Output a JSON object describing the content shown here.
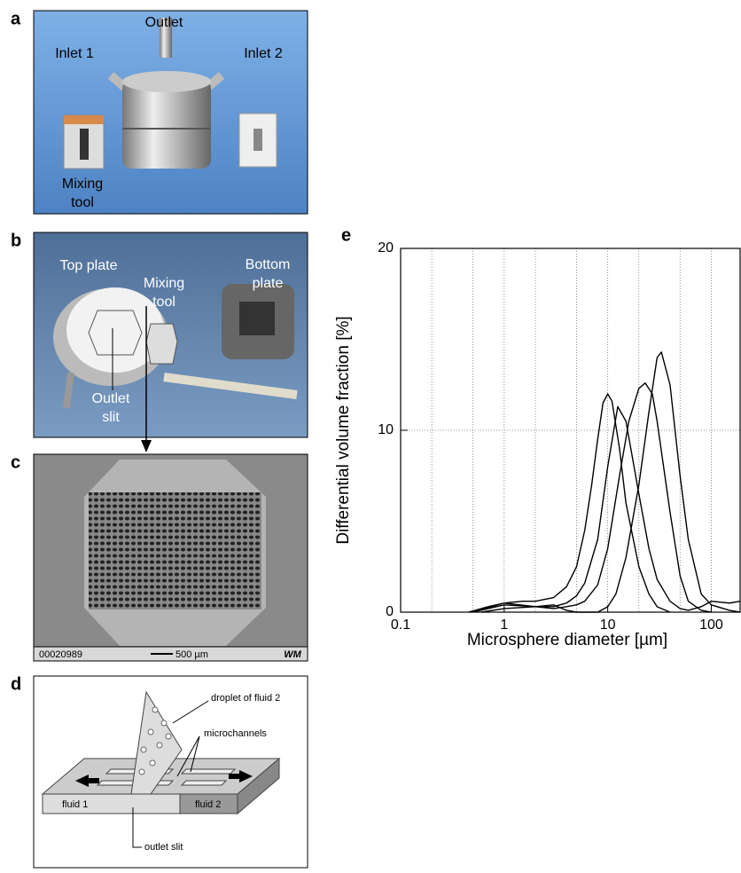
{
  "panels": {
    "a": {
      "label": "a",
      "outlet": "Outlet",
      "inlet1": "Inlet 1",
      "inlet2": "Inlet 2",
      "mixing_tool": [
        "Mixing",
        "tool"
      ]
    },
    "b": {
      "label": "b",
      "top_plate": "Top plate",
      "mixing_tool": [
        "Mixing",
        "tool"
      ],
      "bottom_plate": [
        "Bottom",
        "plate"
      ],
      "outlet_slit": [
        "Outlet",
        "slit"
      ]
    },
    "c": {
      "label": "c",
      "image_id": "00020989",
      "scale_bar": "500 µm",
      "logo": "WM"
    },
    "d": {
      "label": "d",
      "droplet": "droplet of fluid 2",
      "microchannels": "microchannels",
      "fluid1": "fluid 1",
      "fluid2": "fluid 2",
      "outlet_slit": "outlet slit"
    }
  },
  "chart_data": {
    "type": "line",
    "panel_label": "e",
    "xlabel": "Microsphere diameter [µm]",
    "ylabel": "Differential volume fraction [%]",
    "xscale": "log",
    "xlim": [
      0.1,
      190
    ],
    "xticks": [
      0.1,
      1,
      10,
      100
    ],
    "xgrid": [
      0.2,
      0.5,
      1,
      2,
      5,
      10,
      20,
      50,
      100
    ],
    "ylim": [
      0,
      20
    ],
    "yticks": [
      0,
      10,
      20
    ],
    "ygrid": [
      10
    ],
    "series": [
      {
        "color": "#000000",
        "x": [
          0.45,
          0.7,
          1,
          1.5,
          2,
          3,
          4,
          5,
          6,
          7,
          8,
          9,
          10,
          11,
          13,
          15,
          20,
          25,
          30,
          40
        ],
        "values": [
          0,
          0.3,
          0.5,
          0.6,
          0.6,
          0.8,
          1.4,
          2.5,
          4.5,
          7,
          9.5,
          11.5,
          12,
          11.6,
          9,
          6,
          2.5,
          1,
          0.3,
          0
        ]
      },
      {
        "color": "#000000",
        "x": [
          0.5,
          1,
          2,
          3,
          4,
          5,
          6,
          8,
          10,
          12.5,
          15,
          20,
          25,
          30,
          40,
          50,
          60,
          80,
          100,
          150,
          190
        ],
        "values": [
          0,
          0.4,
          0.3,
          0.3,
          0.5,
          0.9,
          1.6,
          4,
          8,
          11.3,
          10.5,
          6.5,
          3.5,
          1.8,
          0.6,
          0.2,
          0.1,
          0.3,
          0.6,
          0.5,
          0.6
        ]
      },
      {
        "color": "#000000",
        "x": [
          0.5,
          1,
          2,
          3,
          4,
          5,
          6,
          8,
          10,
          13,
          16,
          20,
          23,
          27,
          30,
          40,
          50,
          60,
          80,
          100
        ],
        "values": [
          0,
          0.5,
          0.3,
          0.2,
          0.3,
          0.4,
          0.6,
          1.5,
          3.5,
          7.5,
          10.5,
          12.3,
          12.6,
          12,
          10.5,
          5.5,
          2,
          0.6,
          0.1,
          0
        ]
      },
      {
        "color": "#000000",
        "x": [
          0.6,
          1,
          2,
          3,
          4,
          5,
          8,
          10,
          12,
          15,
          20,
          25,
          30,
          33,
          40,
          50,
          60,
          80,
          100,
          150,
          190
        ],
        "values": [
          0,
          0.2,
          0.3,
          0.4,
          0.1,
          0,
          0,
          0.3,
          1,
          3,
          7,
          11,
          14,
          14.3,
          12.5,
          7.5,
          4,
          1,
          0.4,
          0.1,
          0
        ]
      }
    ]
  }
}
